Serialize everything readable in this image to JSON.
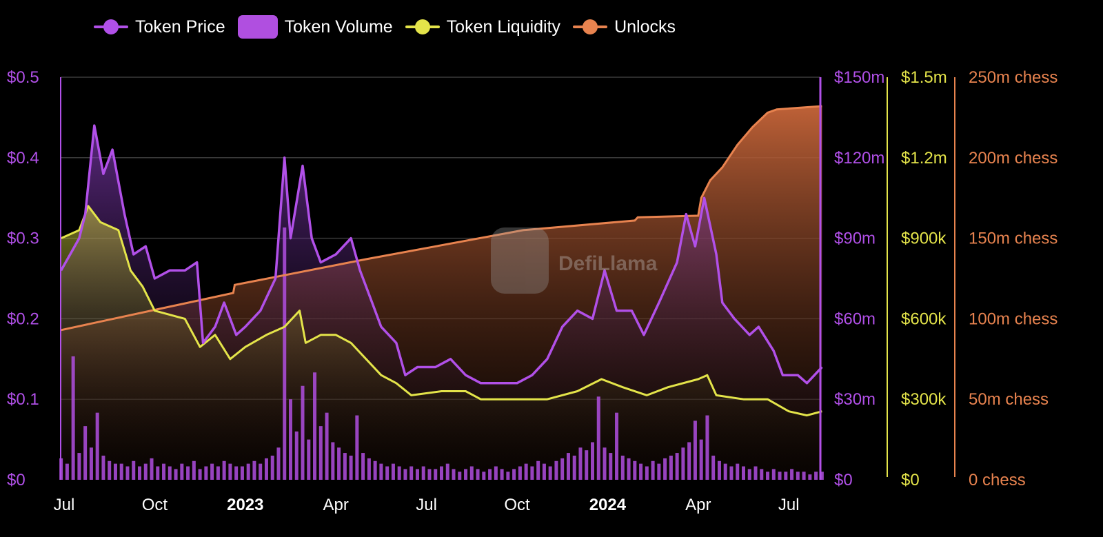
{
  "legend": [
    {
      "label": "Token Price",
      "kind": "line",
      "color": "#b150e8"
    },
    {
      "label": "Token Volume",
      "kind": "box",
      "color": "#b04fe0"
    },
    {
      "label": "Token Liquidity",
      "kind": "line",
      "color": "#e4e44a"
    },
    {
      "label": "Unlocks",
      "kind": "line",
      "color": "#e8834f"
    }
  ],
  "watermark": "DefiLlama",
  "chart_data": {
    "type": "line",
    "x_unit": "months since Jul 2022",
    "x_range": [
      -0.1,
      25.1
    ],
    "x_ticks": [
      {
        "m": 0,
        "label": "Jul",
        "bold": false
      },
      {
        "m": 3,
        "label": "Oct",
        "bold": false
      },
      {
        "m": 6,
        "label": "2023",
        "bold": true
      },
      {
        "m": 9,
        "label": "Apr",
        "bold": false
      },
      {
        "m": 12,
        "label": "Jul",
        "bold": false
      },
      {
        "m": 15,
        "label": "Oct",
        "bold": false
      },
      {
        "m": 18,
        "label": "2024",
        "bold": true
      },
      {
        "m": 21,
        "label": "Apr",
        "bold": false
      },
      {
        "m": 24,
        "label": "Jul",
        "bold": false
      }
    ],
    "axes": {
      "price": {
        "range": [
          0,
          0.5
        ],
        "ticks": [
          "$0",
          "$0.1",
          "$0.2",
          "$0.3",
          "$0.4",
          "$0.5"
        ],
        "color": "#b150e8"
      },
      "volume": {
        "range": [
          0,
          150
        ],
        "unit": "$m",
        "ticks": [
          "$0",
          "$30m",
          "$60m",
          "$90m",
          "$120m",
          "$150m"
        ],
        "color": "#b150e8"
      },
      "liquidity": {
        "range": [
          0,
          1500
        ],
        "unit": "$k",
        "ticks": [
          "$0",
          "$300k",
          "$600k",
          "$900k",
          "$1.2m",
          "$1.5m"
        ],
        "color": "#e4e44a"
      },
      "unlocks": {
        "range": [
          0,
          250
        ],
        "unit": "m chess",
        "ticks": [
          "0 chess",
          "50m chess",
          "100m chess",
          "150m chess",
          "200m chess",
          "250m chess"
        ],
        "color": "#e8834f"
      }
    },
    "grid": true,
    "legend_position": "top",
    "series": [
      {
        "name": "Token Price",
        "axis": "price",
        "color": "#b150e8",
        "points": [
          [
            -0.1,
            0.26
          ],
          [
            0.2,
            0.28
          ],
          [
            0.5,
            0.3
          ],
          [
            0.7,
            0.33
          ],
          [
            1.0,
            0.44
          ],
          [
            1.3,
            0.38
          ],
          [
            1.6,
            0.41
          ],
          [
            2.0,
            0.33
          ],
          [
            2.3,
            0.28
          ],
          [
            2.7,
            0.29
          ],
          [
            3.0,
            0.25
          ],
          [
            3.5,
            0.26
          ],
          [
            4.0,
            0.26
          ],
          [
            4.4,
            0.27
          ],
          [
            4.6,
            0.17
          ],
          [
            5.0,
            0.19
          ],
          [
            5.3,
            0.22
          ],
          [
            5.7,
            0.18
          ],
          [
            6.0,
            0.19
          ],
          [
            6.5,
            0.21
          ],
          [
            7.0,
            0.25
          ],
          [
            7.3,
            0.4
          ],
          [
            7.5,
            0.3
          ],
          [
            7.9,
            0.39
          ],
          [
            8.2,
            0.3
          ],
          [
            8.5,
            0.27
          ],
          [
            9.0,
            0.28
          ],
          [
            9.5,
            0.3
          ],
          [
            9.8,
            0.26
          ],
          [
            10.2,
            0.22
          ],
          [
            10.5,
            0.19
          ],
          [
            11.0,
            0.17
          ],
          [
            11.3,
            0.13
          ],
          [
            11.7,
            0.14
          ],
          [
            12.3,
            0.14
          ],
          [
            12.8,
            0.15
          ],
          [
            13.3,
            0.13
          ],
          [
            13.8,
            0.12
          ],
          [
            14.5,
            0.12
          ],
          [
            15.0,
            0.12
          ],
          [
            15.5,
            0.13
          ],
          [
            16.0,
            0.15
          ],
          [
            16.5,
            0.19
          ],
          [
            17.0,
            0.21
          ],
          [
            17.5,
            0.2
          ],
          [
            17.9,
            0.26
          ],
          [
            18.3,
            0.21
          ],
          [
            18.8,
            0.21
          ],
          [
            19.2,
            0.18
          ],
          [
            19.7,
            0.22
          ],
          [
            20.3,
            0.27
          ],
          [
            20.6,
            0.33
          ],
          [
            20.9,
            0.29
          ],
          [
            21.2,
            0.35
          ],
          [
            21.6,
            0.28
          ],
          [
            21.8,
            0.22
          ],
          [
            22.2,
            0.2
          ],
          [
            22.7,
            0.18
          ],
          [
            23.0,
            0.19
          ],
          [
            23.5,
            0.16
          ],
          [
            23.8,
            0.13
          ],
          [
            24.3,
            0.13
          ],
          [
            24.6,
            0.12
          ],
          [
            25.1,
            0.14
          ]
        ]
      },
      {
        "name": "Token Liquidity",
        "axis": "liquidity",
        "color": "#e4e44a",
        "points": [
          [
            -0.1,
            900
          ],
          [
            0.5,
            930
          ],
          [
            0.8,
            1020
          ],
          [
            1.2,
            960
          ],
          [
            1.8,
            930
          ],
          [
            2.2,
            780
          ],
          [
            2.6,
            720
          ],
          [
            3.0,
            630
          ],
          [
            3.5,
            615
          ],
          [
            4.0,
            600
          ],
          [
            4.5,
            495
          ],
          [
            5.0,
            540
          ],
          [
            5.5,
            450
          ],
          [
            6.0,
            495
          ],
          [
            6.7,
            540
          ],
          [
            7.3,
            570
          ],
          [
            7.8,
            630
          ],
          [
            8.0,
            510
          ],
          [
            8.5,
            540
          ],
          [
            9.0,
            540
          ],
          [
            9.5,
            510
          ],
          [
            10.0,
            450
          ],
          [
            10.5,
            390
          ],
          [
            11.0,
            360
          ],
          [
            11.5,
            315
          ],
          [
            12.5,
            330
          ],
          [
            13.3,
            330
          ],
          [
            13.8,
            300
          ],
          [
            15.0,
            300
          ],
          [
            16.0,
            300
          ],
          [
            17.0,
            330
          ],
          [
            17.8,
            375
          ],
          [
            18.5,
            345
          ],
          [
            19.3,
            315
          ],
          [
            20.0,
            345
          ],
          [
            21.0,
            375
          ],
          [
            21.3,
            390
          ],
          [
            21.6,
            315
          ],
          [
            22.5,
            300
          ],
          [
            23.3,
            300
          ],
          [
            24.0,
            255
          ],
          [
            24.6,
            240
          ],
          [
            25.1,
            255
          ]
        ]
      },
      {
        "name": "Unlocks",
        "axis": "unlocks",
        "color": "#e8834f",
        "points": [
          [
            -0.1,
            93
          ],
          [
            5.6,
            116
          ],
          [
            5.65,
            121
          ],
          [
            10,
            137
          ],
          [
            15.2,
            155
          ],
          [
            18.9,
            161
          ],
          [
            19,
            163
          ],
          [
            21.0,
            164
          ],
          [
            21.1,
            175
          ],
          [
            21.4,
            186
          ],
          [
            21.8,
            194
          ],
          [
            22.3,
            208
          ],
          [
            22.8,
            219
          ],
          [
            23.3,
            228
          ],
          [
            23.6,
            230
          ],
          [
            25.1,
            232
          ]
        ]
      },
      {
        "name": "Token Volume",
        "axis": "volume",
        "type": "bar",
        "color": "#b04fe0",
        "x_start": -0.1,
        "x_step": 0.2,
        "values": [
          8,
          6,
          46,
          10,
          20,
          12,
          25,
          9,
          7,
          6,
          6,
          5,
          7,
          5,
          6,
          8,
          5,
          6,
          5,
          4,
          6,
          5,
          7,
          4,
          5,
          6,
          5,
          7,
          6,
          5,
          5,
          6,
          7,
          6,
          8,
          9,
          12,
          94,
          30,
          18,
          35,
          15,
          40,
          20,
          25,
          14,
          12,
          10,
          9,
          24,
          10,
          8,
          7,
          6,
          5,
          6,
          5,
          4,
          5,
          4,
          5,
          4,
          4,
          5,
          6,
          4,
          3,
          4,
          5,
          4,
          3,
          4,
          5,
          4,
          3,
          4,
          5,
          6,
          5,
          7,
          6,
          5,
          7,
          8,
          10,
          9,
          12,
          11,
          14,
          31,
          12,
          10,
          25,
          9,
          8,
          7,
          6,
          5,
          7,
          6,
          8,
          9,
          10,
          12,
          14,
          22,
          15,
          24,
          9,
          7,
          6,
          5,
          6,
          5,
          4,
          5,
          4,
          3,
          4,
          3,
          3,
          4,
          3,
          3,
          2,
          3,
          3
        ]
      }
    ]
  }
}
